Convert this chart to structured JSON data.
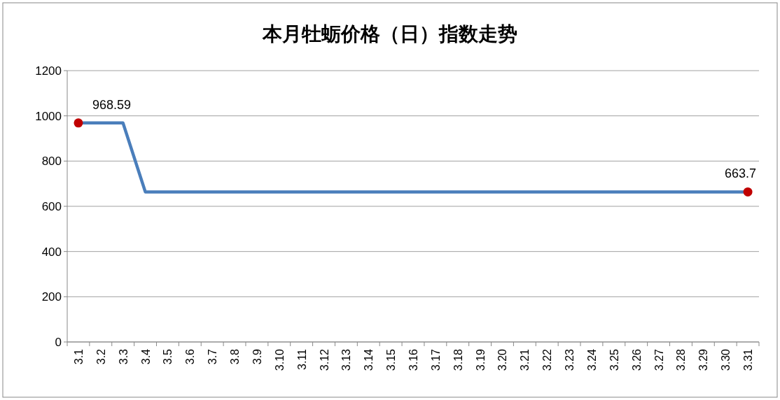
{
  "chart_data": {
    "type": "line",
    "title": "本月牡蛎价格（日）指数走势",
    "categories": [
      "3.1",
      "3.2",
      "3.3",
      "3.4",
      "3.5",
      "3.6",
      "3.7",
      "3.8",
      "3.9",
      "3.10",
      "3.11",
      "3.12",
      "3.13",
      "3.14",
      "3.15",
      "3.16",
      "3.17",
      "3.18",
      "3.19",
      "3.20",
      "3.21",
      "3.22",
      "3.23",
      "3.24",
      "3.25",
      "3.26",
      "3.27",
      "3.28",
      "3.29",
      "3.30",
      "3.31"
    ],
    "series": [
      {
        "color": "#4a7ebb",
        "values": [
          968.59,
          968.59,
          968.59,
          663.7,
          663.7,
          663.7,
          663.7,
          663.7,
          663.7,
          663.7,
          663.7,
          663.7,
          663.7,
          663.7,
          663.7,
          663.7,
          663.7,
          663.7,
          663.7,
          663.7,
          663.7,
          663.7,
          663.7,
          663.7,
          663.7,
          663.7,
          663.7,
          663.7,
          663.7,
          663.7,
          663.7
        ]
      },
      {
        "type": "scatter",
        "color": "#c00000",
        "x": [
          "3.1",
          "3.31"
        ],
        "values": [
          968.59,
          663.7
        ],
        "value_labels": [
          "968.59",
          "663.7"
        ]
      }
    ],
    "ylim": [
      0,
      1200
    ],
    "yticks": [
      0,
      200,
      400,
      600,
      800,
      1000,
      1200
    ],
    "grid": "y",
    "line_style": "solid"
  }
}
